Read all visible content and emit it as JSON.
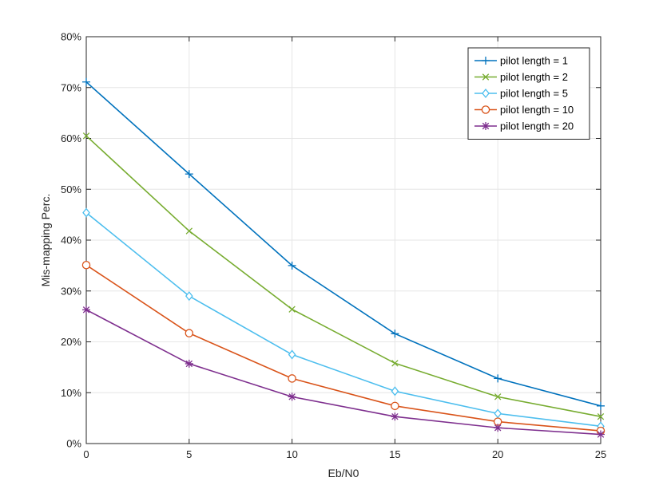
{
  "chart_data": {
    "type": "line",
    "xlabel": "Eb/N0",
    "ylabel": "Mis-mapping Perc.",
    "x": [
      0,
      5,
      10,
      15,
      20,
      25
    ],
    "xlim": [
      0,
      25
    ],
    "ylim": [
      0,
      80
    ],
    "xticks": [
      "0",
      "5",
      "10",
      "15",
      "20",
      "25"
    ],
    "yticks": [
      "0%",
      "10%",
      "20%",
      "30%",
      "40%",
      "50%",
      "60%",
      "70%",
      "80%"
    ],
    "grid": true,
    "legend_position": "top-right",
    "series": [
      {
        "name": "pilot length = 1",
        "color": "#0072BD",
        "marker": "plus",
        "values": [
          71.1,
          53.0,
          35.0,
          21.6,
          12.8,
          7.4
        ]
      },
      {
        "name": "pilot length = 2",
        "color": "#77AC30",
        "marker": "x",
        "values": [
          60.5,
          41.8,
          26.4,
          15.8,
          9.2,
          5.3
        ]
      },
      {
        "name": "pilot length = 5",
        "color": "#4DBEEE",
        "marker": "diamond",
        "values": [
          45.4,
          29.0,
          17.5,
          10.3,
          5.9,
          3.4
        ]
      },
      {
        "name": "pilot length = 10",
        "color": "#D95319",
        "marker": "circle",
        "values": [
          35.1,
          21.7,
          12.8,
          7.4,
          4.3,
          2.5
        ]
      },
      {
        "name": "pilot length = 20",
        "color": "#7E2F8E",
        "marker": "star",
        "values": [
          26.3,
          15.7,
          9.2,
          5.3,
          3.1,
          1.8
        ]
      }
    ]
  }
}
